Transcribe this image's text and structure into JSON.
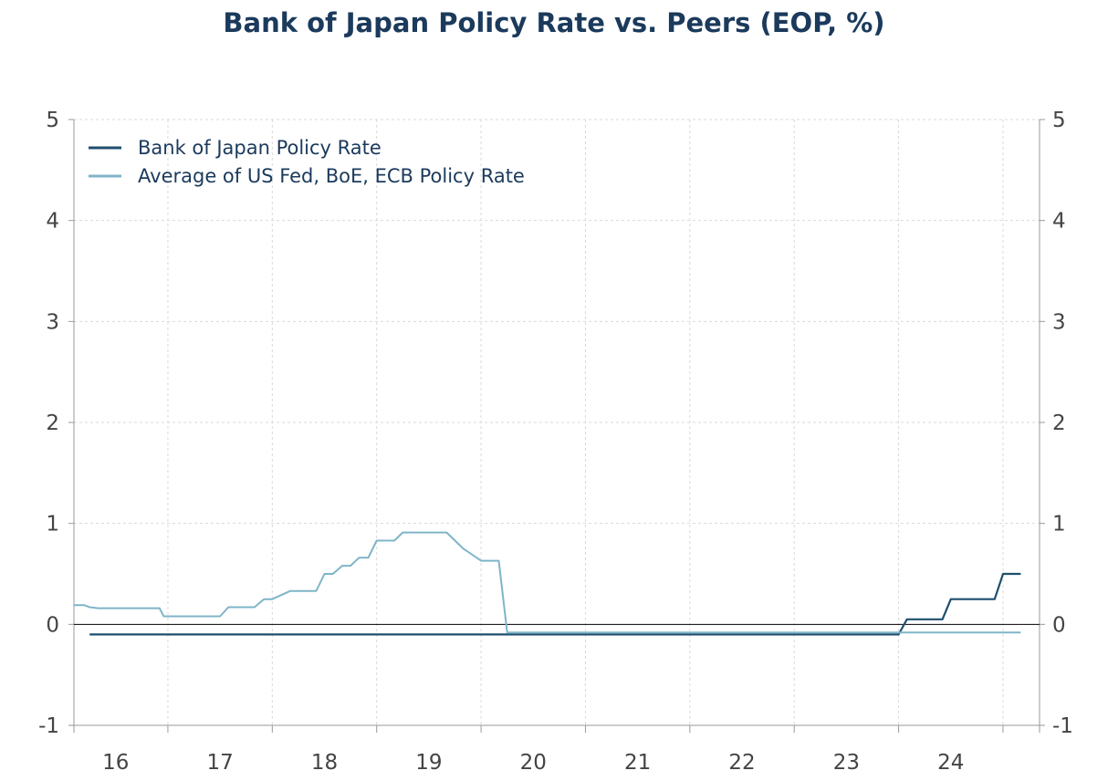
{
  "chart_data": {
    "type": "line",
    "title": "Bank of Japan Policy Rate vs. Peers (EOP, %)",
    "xlabel": "",
    "ylabel": "",
    "ylim": [
      -1,
      5
    ],
    "xlim": [
      2015.6,
      2024.85
    ],
    "y_ticks": [
      -1,
      0,
      1,
      2,
      3,
      4,
      5
    ],
    "y_tick_labels": [
      "-1",
      "0",
      "1",
      "2",
      "3",
      "4",
      "5"
    ],
    "x_tick_labels": [
      "16",
      "17",
      "18",
      "19",
      "20",
      "21",
      "22",
      "23",
      "24"
    ],
    "x_tick_centers": [
      2016,
      2017,
      2018,
      2019,
      2020,
      2021,
      2022,
      2023,
      2024
    ],
    "x_year_boundaries": [
      2016.5,
      2017.5,
      2018.5,
      2019.5,
      2020.5,
      2021.5,
      2022.5,
      2023.5,
      2024.5
    ],
    "grid": true,
    "legend_position": "top-left",
    "dual_y_axis": true,
    "series": [
      {
        "name": "Bank of Japan Policy Rate",
        "color": "#1f4e6e",
        "x": [
          2015.75,
          2023.5,
          2023.58,
          2023.92,
          2024.0,
          2024.33,
          2024.42,
          2024.5,
          2024.58,
          2024.67
        ],
        "y": [
          -0.1,
          -0.1,
          0.05,
          0.05,
          0.25,
          0.25,
          0.25,
          0.5,
          0.5,
          0.5
        ]
      },
      {
        "name": "Average of US Fed, BoE, ECB Policy Rate",
        "color": "#7fb5c8",
        "x": [
          2015.6,
          2015.7,
          2015.75,
          2015.83,
          2016.0,
          2016.08,
          2016.13,
          2016.42,
          2016.46,
          2016.58,
          2016.67,
          2016.75,
          2016.83,
          2016.92,
          2017.0,
          2017.08,
          2017.33,
          2017.42,
          2017.5,
          2017.67,
          2017.75,
          2017.92,
          2018.0,
          2018.08,
          2018.17,
          2018.25,
          2018.33,
          2018.42,
          2018.5,
          2018.58,
          2018.67,
          2018.75,
          2019.0,
          2019.08,
          2019.17,
          2019.25,
          2019.33,
          2019.5,
          2019.58,
          2019.67,
          2019.75,
          2020.0,
          2020.5,
          2020.75,
          2020.83,
          2021.0,
          2021.33,
          2021.42,
          2021.5,
          2021.58,
          2021.67,
          2021.75,
          2021.83,
          2021.92,
          2022.0,
          2022.08,
          2022.17,
          2022.25,
          2022.33,
          2022.42,
          2022.5,
          2022.58,
          2022.67,
          2022.75,
          2022.83,
          2022.92,
          2023.0,
          2023.17,
          2023.25,
          2023.33,
          2023.42,
          2023.5,
          2023.58,
          2023.67,
          2023.75,
          2023.83,
          2023.92,
          2024.0,
          2024.08,
          2024.17,
          2024.25,
          2024.33,
          2024.42,
          2024.5,
          2024.58,
          2024.67
        ],
        "y": [
          0.19,
          0.19,
          0.17,
          0.16,
          0.16,
          0.16,
          0.16,
          0.16,
          0.08,
          0.08,
          0.08,
          0.08,
          0.08,
          0.08,
          0.08,
          0.17,
          0.17,
          0.25,
          0.25,
          0.33,
          0.33,
          0.33,
          0.5,
          0.5,
          0.58,
          0.58,
          0.66,
          0.66,
          0.83,
          0.83,
          0.83,
          0.91,
          0.91,
          0.91,
          0.91,
          0.83,
          0.75,
          0.63,
          0.63,
          0.63,
          -0.08,
          -0.08,
          -0.08,
          -0.08,
          -0.08,
          -0.08,
          -0.08,
          -0.08,
          -0.08,
          -0.08,
          -0.08,
          -0.08,
          -0.08,
          -0.08,
          -0.08,
          -0.08,
          -0.08,
          -0.08,
          -0.08,
          -0.08,
          -0.08,
          -0.08,
          -0.08,
          -0.08,
          -0.08,
          -0.08,
          -0.08,
          -0.08,
          -0.08,
          -0.08,
          -0.08,
          -0.08,
          -0.08,
          -0.08,
          -0.08,
          -0.08,
          -0.08,
          -0.08,
          -0.08,
          -0.08,
          -0.08,
          -0.08,
          -0.08,
          -0.08,
          -0.08,
          -0.08
        ]
      }
    ]
  }
}
